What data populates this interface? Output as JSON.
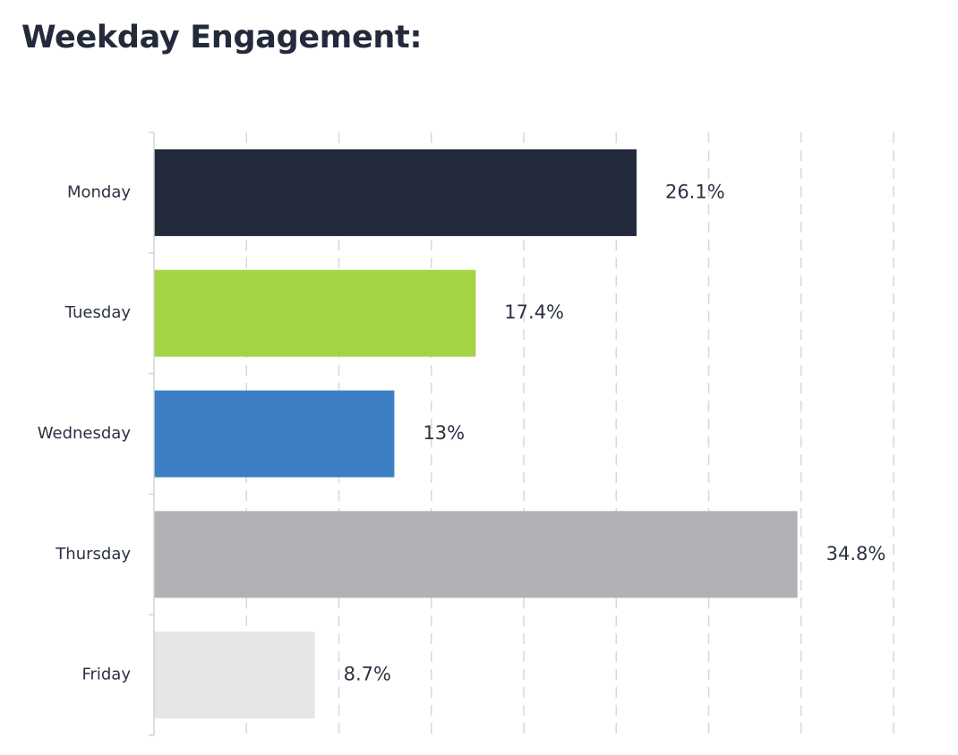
{
  "chart_data": {
    "type": "bar",
    "orientation": "horizontal",
    "title": "Weekday Engagement:",
    "xlabel": "",
    "ylabel": "",
    "categories": [
      "Monday",
      "Tuesday",
      "Wednesday",
      "Thursday",
      "Friday"
    ],
    "values": [
      26.1,
      17.4,
      13,
      34.8,
      8.7
    ],
    "value_labels": [
      "26.1%",
      "17.4%",
      "13%",
      "34.8%",
      "8.7%"
    ],
    "colors": [
      "#232a3c",
      "#a4d343",
      "#3c80c3",
      "#b1b2b5",
      "#e5e6e8"
    ],
    "xlim": [
      0,
      40
    ],
    "x_gridline_interval": 5,
    "grid": "vertical dashed",
    "legend": "none",
    "tick_labels_shown": false
  }
}
